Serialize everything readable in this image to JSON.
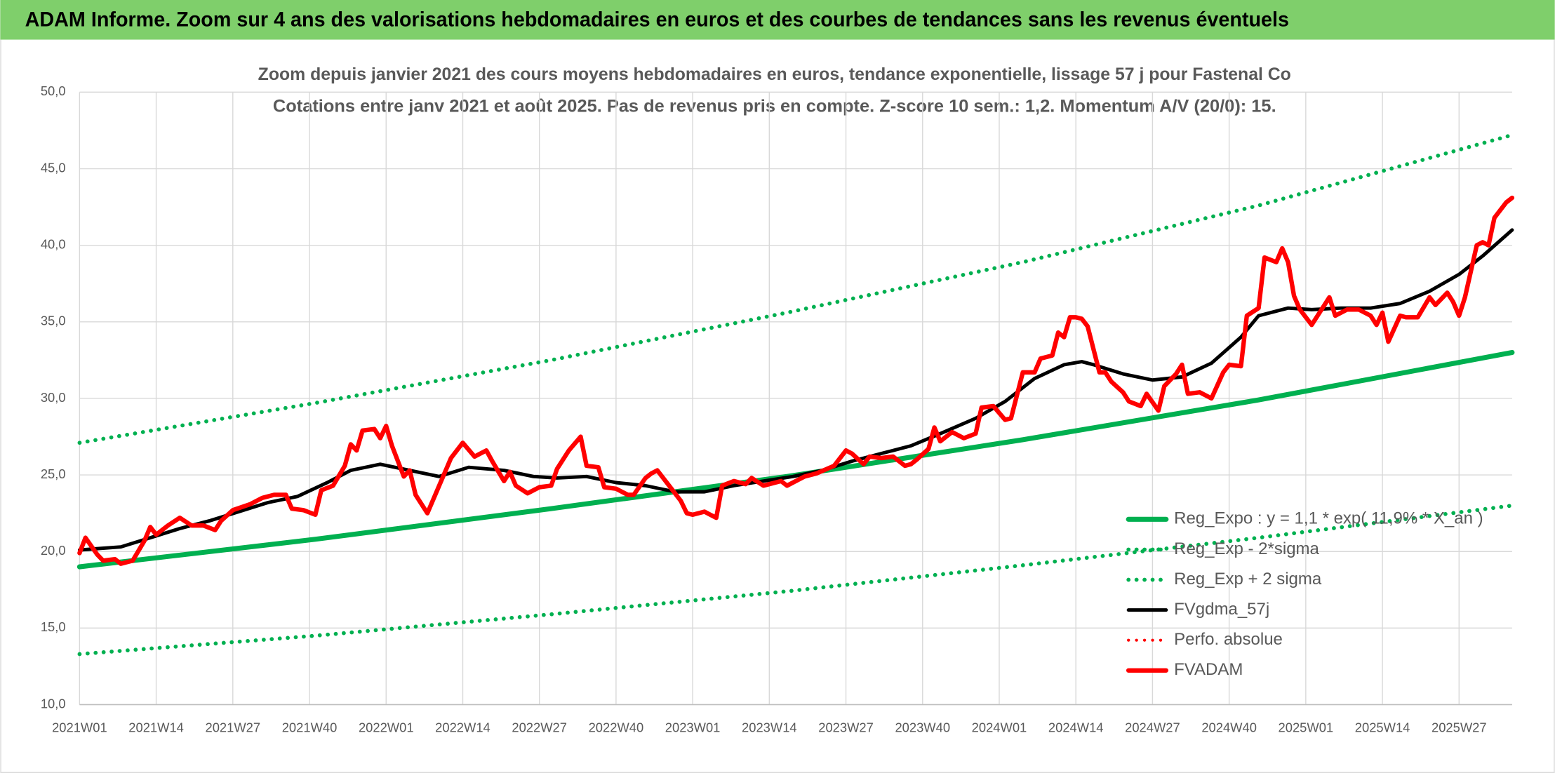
{
  "chart_data": {
    "type": "line",
    "banner_title": "ADAM Informe. Zoom sur 4 ans des valorisations hebdomadaires en euros et des courbes de tendances sans les revenus éventuels",
    "title": "Zoom depuis janvier 2021 des cours moyens hebdomadaires en euros, tendance exponentielle, lissage 57 j pour Fastenal Co",
    "subtitle": "Cotations entre janv 2021 et août 2025. Pas de revenus pris en compte. Z-score 10 sem.: 1,2. Momentum A/V (20/0): 15.",
    "xlim": [
      0,
      243
    ],
    "xticks": [
      {
        "value": 0,
        "label": "2021W01"
      },
      {
        "value": 13,
        "label": "2021W14"
      },
      {
        "value": 26,
        "label": "2021W27"
      },
      {
        "value": 39,
        "label": "2021W40"
      },
      {
        "value": 52,
        "label": "2022W01"
      },
      {
        "value": 65,
        "label": "2022W14"
      },
      {
        "value": 78,
        "label": "2022W27"
      },
      {
        "value": 91,
        "label": "2022W40"
      },
      {
        "value": 104,
        "label": "2023W01"
      },
      {
        "value": 117,
        "label": "2023W14"
      },
      {
        "value": 130,
        "label": "2023W27"
      },
      {
        "value": 143,
        "label": "2023W40"
      },
      {
        "value": 156,
        "label": "2024W01"
      },
      {
        "value": 169,
        "label": "2024W14"
      },
      {
        "value": 182,
        "label": "2024W27"
      },
      {
        "value": 195,
        "label": "2024W40"
      },
      {
        "value": 208,
        "label": "2025W01"
      },
      {
        "value": 221,
        "label": "2025W14"
      },
      {
        "value": 234,
        "label": "2025W27"
      }
    ],
    "ylim": [
      10,
      50
    ],
    "yticks": [
      {
        "value": 10,
        "label": "10,0"
      },
      {
        "value": 15,
        "label": "15,0"
      },
      {
        "value": 20,
        "label": "20,0"
      },
      {
        "value": 25,
        "label": "25,0"
      },
      {
        "value": 30,
        "label": "30,0"
      },
      {
        "value": 35,
        "label": "35,0"
      },
      {
        "value": 40,
        "label": "40,0"
      },
      {
        "value": 45,
        "label": "45,0"
      },
      {
        "value": 50,
        "label": "50,0"
      }
    ],
    "grid": true,
    "legend_position": "right",
    "series": [
      {
        "name": "Reg_Expo : y = 1,1 * exp( 11,9% * X_an )",
        "color": "#00b050",
        "line_style": "solid",
        "x": [
          0,
          40,
          80,
          120,
          160,
          200,
          243
        ],
        "values": [
          19.0,
          20.8,
          22.8,
          24.9,
          27.3,
          29.9,
          33.0
        ]
      },
      {
        "name": "Reg_Exp - 2*sigma",
        "color": "#00b050",
        "line_style": "dotted",
        "x": [
          0,
          40,
          80,
          120,
          160,
          200,
          243
        ],
        "values": [
          13.3,
          14.5,
          15.9,
          17.4,
          19.1,
          20.9,
          23.0
        ]
      },
      {
        "name": "Reg_Exp + 2 sigma",
        "color": "#00b050",
        "line_style": "dotted",
        "x": [
          0,
          40,
          80,
          120,
          160,
          200,
          243
        ],
        "values": [
          27.1,
          29.7,
          32.5,
          35.6,
          38.9,
          42.6,
          47.2
        ]
      },
      {
        "name": "FVgdma_57j",
        "color": "#000000",
        "line_style": "solid",
        "x": [
          0,
          7,
          12,
          17,
          22,
          27,
          32,
          37,
          42,
          46,
          51,
          56,
          61,
          66,
          72,
          77,
          81,
          86,
          91,
          96,
          101,
          106,
          111,
          116,
          121,
          126,
          131,
          136,
          141,
          146,
          152,
          157,
          162,
          167,
          170,
          172,
          177,
          182,
          187,
          192,
          197,
          200,
          205,
          209,
          214,
          219,
          224,
          229,
          234,
          238,
          243
        ],
        "values": [
          20.1,
          20.3,
          20.9,
          21.5,
          22.0,
          22.6,
          23.2,
          23.6,
          24.5,
          25.3,
          25.7,
          25.3,
          24.9,
          25.5,
          25.3,
          24.9,
          24.8,
          24.9,
          24.5,
          24.3,
          23.9,
          23.9,
          24.3,
          24.6,
          24.9,
          25.3,
          25.9,
          26.4,
          26.9,
          27.7,
          28.7,
          29.8,
          31.3,
          32.2,
          32.4,
          32.2,
          31.6,
          31.2,
          31.4,
          32.3,
          34.0,
          35.4,
          35.9,
          35.8,
          35.9,
          35.9,
          36.2,
          37.0,
          38.1,
          39.3,
          41.0
        ]
      },
      {
        "name": "Perfo. absolue",
        "color": "#ff0000",
        "line_style": "dotted",
        "x": [],
        "values": []
      },
      {
        "name": "FVADAM",
        "color": "#ff0000",
        "line_style": "solid",
        "x": [
          0,
          1,
          3,
          4,
          6,
          7,
          9,
          11,
          12,
          13,
          15,
          17,
          19,
          21,
          23,
          24,
          26,
          29,
          31,
          33,
          35,
          36,
          38,
          40,
          41,
          43,
          45,
          46,
          47,
          48,
          50,
          51,
          52,
          53,
          55,
          56,
          57,
          59,
          61,
          63,
          65,
          67,
          69,
          70,
          72,
          73,
          74,
          76,
          78,
          80,
          81,
          83,
          85,
          86,
          88,
          89,
          91,
          93,
          94,
          96,
          97,
          98,
          100,
          102,
          103,
          104,
          106,
          108,
          109,
          111,
          113,
          114,
          116,
          119,
          120,
          123,
          125,
          128,
          130,
          131,
          133,
          134,
          136,
          138,
          140,
          141,
          142,
          144,
          145,
          146,
          148,
          150,
          152,
          153,
          155,
          157,
          158,
          160,
          162,
          163,
          165,
          166,
          167,
          168,
          169,
          170,
          171,
          173,
          174,
          175,
          177,
          178,
          180,
          181,
          183,
          184,
          186,
          187,
          188,
          190,
          192,
          194,
          195,
          197,
          198,
          200,
          201,
          203,
          204,
          205,
          206,
          207,
          209,
          210,
          212,
          213,
          215,
          217,
          219,
          220,
          221,
          222,
          224,
          225,
          227,
          229,
          230,
          232,
          233,
          234,
          235,
          237,
          238,
          239,
          240,
          242,
          243
        ],
        "values": [
          19.9,
          20.9,
          19.8,
          19.4,
          19.5,
          19.2,
          19.4,
          20.7,
          21.6,
          21.1,
          21.7,
          22.2,
          21.7,
          21.7,
          21.4,
          22.0,
          22.7,
          23.1,
          23.5,
          23.7,
          23.7,
          22.8,
          22.7,
          22.4,
          24.0,
          24.3,
          25.6,
          27.0,
          26.6,
          27.9,
          28.0,
          27.4,
          28.2,
          26.9,
          24.9,
          25.3,
          23.7,
          22.5,
          24.3,
          26.1,
          27.1,
          26.2,
          26.6,
          25.9,
          24.6,
          25.2,
          24.3,
          23.8,
          24.2,
          24.3,
          25.4,
          26.6,
          27.5,
          25.6,
          25.5,
          24.2,
          24.1,
          23.7,
          23.7,
          24.8,
          25.1,
          25.3,
          24.3,
          23.3,
          22.5,
          22.4,
          22.6,
          22.2,
          24.3,
          24.6,
          24.4,
          24.8,
          24.3,
          24.6,
          24.3,
          24.9,
          25.1,
          25.6,
          26.6,
          26.4,
          25.7,
          26.2,
          26.1,
          26.2,
          25.6,
          25.7,
          26.0,
          26.7,
          28.1,
          27.2,
          27.8,
          27.4,
          27.7,
          29.4,
          29.5,
          28.6,
          28.7,
          31.7,
          31.7,
          32.6,
          32.8,
          34.3,
          34.0,
          35.3,
          35.3,
          35.2,
          34.7,
          31.7,
          31.7,
          31.1,
          30.4,
          29.8,
          29.5,
          30.3,
          29.2,
          30.8,
          31.6,
          32.2,
          30.3,
          30.4,
          30.0,
          31.7,
          32.2,
          32.1,
          35.4,
          35.9,
          39.2,
          38.9,
          39.8,
          38.9,
          36.7,
          35.8,
          34.8,
          35.4,
          36.6,
          35.4,
          35.8,
          35.8,
          35.4,
          34.8,
          35.6,
          33.7,
          35.4,
          35.3,
          35.3,
          36.6,
          36.1,
          36.9,
          36.3,
          35.4,
          36.6,
          40.0,
          40.2,
          40.0,
          41.8,
          42.8,
          43.1
        ]
      }
    ]
  }
}
